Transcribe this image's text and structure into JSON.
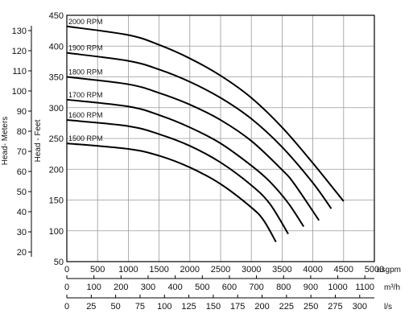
{
  "chart_data": {
    "type": "line",
    "x_primary": {
      "unit": "usgpm",
      "range": [
        0,
        5000
      ],
      "ticks": [
        "0",
        "500",
        "1000",
        "1500",
        "2000",
        "2500",
        "3000",
        "3500",
        "4000",
        "4500",
        "5000"
      ]
    },
    "x_secondary": [
      {
        "unit": "m³/h",
        "range": [
          0,
          1135
        ],
        "ticks": [
          "0",
          "100",
          "200",
          "300",
          "400",
          "500",
          "600",
          "700",
          "800",
          "900",
          "1000",
          "1100"
        ],
        "tick_values": [
          0,
          100,
          200,
          300,
          400,
          500,
          600,
          700,
          800,
          900,
          1000,
          1100
        ]
      },
      {
        "unit": "l/s",
        "range": [
          0,
          315
        ],
        "ticks": [
          "0",
          "25",
          "50",
          "75",
          "100",
          "125",
          "150",
          "175",
          "200",
          "225",
          "250",
          "275",
          "300"
        ],
        "tick_values": [
          0,
          25,
          50,
          75,
          100,
          125,
          150,
          175,
          200,
          225,
          250,
          275,
          300
        ]
      }
    ],
    "y_feet": {
      "label": "Head - Feet",
      "range": [
        50,
        450
      ],
      "ticks": [
        "50",
        "100",
        "150",
        "200",
        "250",
        "300",
        "350",
        "400",
        "450"
      ],
      "tick_values": [
        50,
        100,
        150,
        200,
        250,
        300,
        350,
        400,
        450
      ]
    },
    "y_meters": {
      "label": "Head- Meters",
      "ticks": [
        "20",
        "30",
        "40",
        "50",
        "60",
        "70",
        "80",
        "90",
        "100",
        "110",
        "120",
        "130"
      ],
      "tick_values": [
        20,
        30,
        40,
        50,
        60,
        70,
        80,
        90,
        100,
        110,
        120,
        130
      ]
    },
    "grid": true,
    "series": [
      {
        "name": "2000 RPM",
        "points": [
          [
            0,
            432
          ],
          [
            1000,
            418
          ],
          [
            1500,
            402
          ],
          [
            2000,
            380
          ],
          [
            2500,
            352
          ],
          [
            3000,
            316
          ],
          [
            3500,
            268
          ],
          [
            4000,
            210
          ],
          [
            4500,
            148
          ]
        ]
      },
      {
        "name": "1900 RPM",
        "points": [
          [
            0,
            389
          ],
          [
            1000,
            376
          ],
          [
            1500,
            362
          ],
          [
            2000,
            342
          ],
          [
            2500,
            316
          ],
          [
            3000,
            282
          ],
          [
            3500,
            236
          ],
          [
            4000,
            178
          ],
          [
            4300,
            136
          ]
        ]
      },
      {
        "name": "1800 RPM",
        "points": [
          [
            0,
            350
          ],
          [
            1000,
            338
          ],
          [
            1500,
            324
          ],
          [
            2000,
            305
          ],
          [
            2500,
            280
          ],
          [
            3000,
            246
          ],
          [
            3500,
            199
          ],
          [
            3700,
            176
          ],
          [
            4100,
            117
          ]
        ]
      },
      {
        "name": "1700 RPM",
        "points": [
          [
            0,
            313
          ],
          [
            1000,
            302
          ],
          [
            1500,
            288
          ],
          [
            2000,
            268
          ],
          [
            2500,
            242
          ],
          [
            3000,
            206
          ],
          [
            3300,
            180
          ],
          [
            3600,
            145
          ],
          [
            3850,
            107
          ]
        ]
      },
      {
        "name": "1600 RPM",
        "points": [
          [
            0,
            280
          ],
          [
            1000,
            270
          ],
          [
            1500,
            257
          ],
          [
            2000,
            238
          ],
          [
            2500,
            211
          ],
          [
            3000,
            174
          ],
          [
            3300,
            144
          ],
          [
            3600,
            95
          ]
        ]
      },
      {
        "name": "1500 RPM",
        "points": [
          [
            0,
            242
          ],
          [
            1000,
            233
          ],
          [
            1500,
            222
          ],
          [
            2000,
            203
          ],
          [
            2500,
            176
          ],
          [
            3000,
            138
          ],
          [
            3200,
            117
          ],
          [
            3400,
            82
          ]
        ]
      }
    ]
  }
}
